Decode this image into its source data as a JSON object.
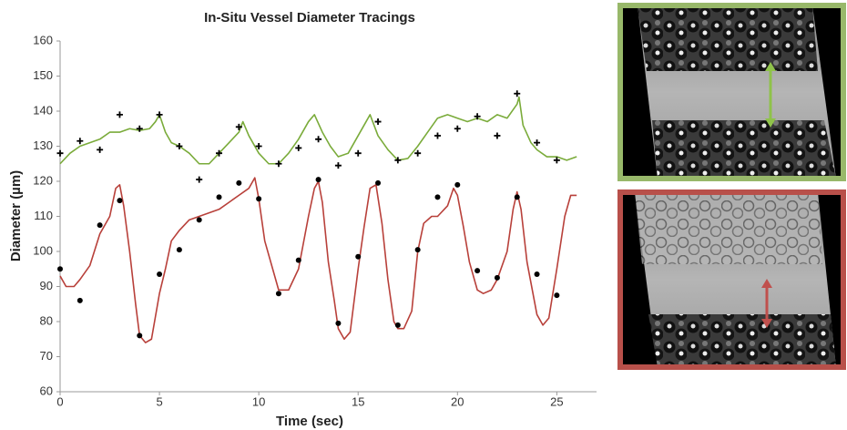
{
  "chart_data": {
    "type": "line",
    "title": "In-Situ Vessel Diameter Tracings",
    "x_label": "Time (sec)",
    "y_label": "Diameter (µm)",
    "xlim": [
      0,
      27
    ],
    "xticks": [
      0,
      5,
      10,
      15,
      20,
      25
    ],
    "ylim": [
      60,
      160
    ],
    "yticks": [
      60,
      70,
      80,
      90,
      100,
      110,
      120,
      130,
      140,
      150,
      160
    ],
    "grid": false,
    "series": [
      {
        "type": "line",
        "color": "#7aab3a",
        "x": [
          0,
          0.5,
          1,
          1.5,
          2,
          2.5,
          3,
          3.5,
          4,
          4.5,
          4.8,
          5,
          5.3,
          5.6,
          6,
          6.5,
          7,
          7.5,
          8,
          8.5,
          9,
          9.2,
          9.5,
          10,
          10.5,
          11,
          11.5,
          12,
          12.5,
          12.8,
          13.2,
          13.6,
          14,
          14.5,
          15,
          15.4,
          15.6,
          16,
          16.5,
          17,
          17.5,
          18,
          18.5,
          19,
          19.5,
          20,
          20.5,
          21,
          21.5,
          22,
          22.5,
          23,
          23.1,
          23.3,
          23.7,
          24,
          24.5,
          25,
          25.5,
          26
        ],
        "values": [
          125,
          128,
          130,
          131,
          132,
          134,
          134,
          135,
          134.5,
          135,
          137,
          139,
          134,
          131,
          130,
          128,
          125,
          125,
          128,
          131,
          134,
          137,
          133,
          128,
          125,
          125,
          128,
          132,
          137,
          139,
          134,
          130,
          127,
          128,
          133,
          137,
          139,
          133,
          129,
          126,
          126.5,
          130,
          134,
          138,
          139,
          138,
          137,
          138,
          137,
          139,
          138,
          142,
          144,
          136,
          131,
          129,
          127,
          127,
          126,
          127
        ]
      },
      {
        "type": "line",
        "color": "#b8403a",
        "x": [
          0,
          0.3,
          0.7,
          1,
          1.5,
          2,
          2.5,
          2.8,
          3,
          3.2,
          3.5,
          3.8,
          4,
          4.3,
          4.6,
          5,
          5.3,
          5.6,
          6,
          6.5,
          7,
          7.5,
          8,
          8.5,
          9,
          9.5,
          9.8,
          10,
          10.3,
          10.7,
          11,
          11.5,
          12,
          12.5,
          12.8,
          13,
          13.2,
          13.5,
          13.8,
          14,
          14.3,
          14.6,
          15,
          15.3,
          15.6,
          15.9,
          16.2,
          16.5,
          16.8,
          17,
          17.3,
          17.7,
          18,
          18.3,
          18.7,
          19,
          19.5,
          19.8,
          20,
          20.3,
          20.6,
          21,
          21.3,
          21.7,
          22,
          22.5,
          22.8,
          23,
          23.2,
          23.5,
          23.8,
          24,
          24.3,
          24.6,
          25,
          25.4,
          25.7,
          26
        ],
        "values": [
          93,
          90,
          90,
          92,
          96,
          105,
          110,
          118,
          119,
          113,
          100,
          85,
          76,
          74,
          75,
          88,
          95,
          103,
          106,
          109,
          110,
          111,
          112,
          114,
          116,
          118,
          121,
          115,
          103,
          95,
          89,
          89,
          95,
          110,
          118,
          120,
          114,
          97,
          86,
          78,
          75,
          77,
          95,
          107,
          118,
          119,
          108,
          92,
          80,
          78,
          78,
          83,
          100,
          108,
          110,
          110,
          113,
          118,
          116,
          107,
          97,
          89,
          88,
          89,
          92,
          100,
          112,
          117,
          112,
          97,
          88,
          82,
          79,
          81,
          95,
          110,
          116,
          116
        ]
      },
      {
        "type": "scatter",
        "marker": "plus",
        "color": "#000000",
        "x": [
          0,
          1,
          2,
          3,
          4,
          5,
          6,
          7,
          8,
          9,
          10,
          11,
          12,
          13,
          14,
          15,
          16,
          17,
          18,
          19,
          20,
          21,
          22,
          23,
          24,
          25
        ],
        "values": [
          128,
          131.5,
          129,
          139,
          135,
          139,
          130,
          120.5,
          128,
          135.5,
          130,
          125,
          129.5,
          132,
          124.5,
          128,
          137,
          126,
          128,
          133,
          135,
          138.5,
          133,
          145,
          131,
          126
        ]
      },
      {
        "type": "scatter",
        "marker": "circle",
        "color": "#000000",
        "x": [
          0,
          1,
          2,
          3,
          4,
          5,
          6,
          7,
          8,
          9,
          10,
          11,
          12,
          13,
          14,
          15,
          16,
          17,
          18,
          19,
          20,
          21,
          22,
          23,
          24,
          25
        ],
        "values": [
          95,
          86,
          107.5,
          114.5,
          76,
          93.5,
          100.5,
          109,
          115.5,
          119.5,
          115,
          88,
          97.5,
          120.5,
          79.5,
          98.5,
          119.5,
          79,
          100.5,
          115.5,
          119,
          94.5,
          92.5,
          115.5,
          93.5,
          87.5
        ]
      }
    ]
  }
}
